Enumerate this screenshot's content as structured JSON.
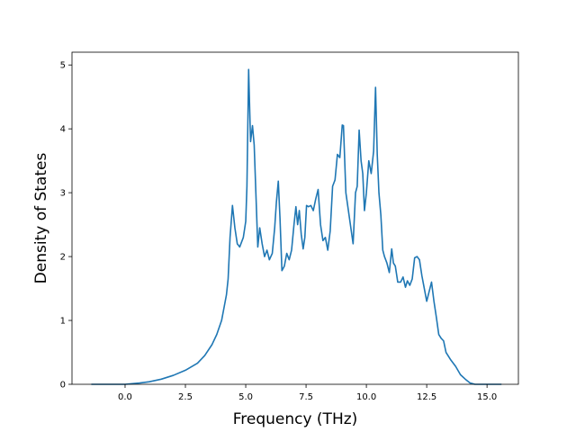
{
  "chart_data": {
    "type": "line",
    "title": "",
    "xlabel": "Frequency (THz)",
    "ylabel": "Density of States",
    "xlim": [
      -2.2,
      16.3
    ],
    "ylim": [
      0,
      5.2
    ],
    "x_ticks": [
      0.0,
      2.5,
      5.0,
      7.5,
      10.0,
      12.5,
      15.0
    ],
    "x_tick_labels": [
      "0.0",
      "2.5",
      "5.0",
      "7.5",
      "10.0",
      "12.5",
      "15.0"
    ],
    "y_ticks": [
      0,
      1,
      2,
      3,
      4,
      5
    ],
    "y_tick_labels": [
      "0",
      "1",
      "2",
      "3",
      "4",
      "5"
    ],
    "grid": false,
    "legend": "none",
    "series_color": "#1f77b4",
    "series": [
      {
        "x": [
          -1.4,
          -1.0,
          -0.5,
          0.0,
          0.3,
          0.6,
          1.0,
          1.5,
          2.0,
          2.5,
          3.0,
          3.3,
          3.6,
          3.8,
          4.0,
          4.1,
          4.2,
          4.27,
          4.35,
          4.45,
          4.55,
          4.65,
          4.75,
          4.9,
          5.0,
          5.05,
          5.12,
          5.2,
          5.28,
          5.35,
          5.42,
          5.5,
          5.58,
          5.68,
          5.78,
          5.88,
          5.98,
          6.1,
          6.2,
          6.27,
          6.35,
          6.42,
          6.5,
          6.6,
          6.7,
          6.8,
          6.9,
          7.0,
          7.08,
          7.15,
          7.22,
          7.3,
          7.38,
          7.45,
          7.52,
          7.6,
          7.7,
          7.8,
          7.9,
          8.0,
          8.1,
          8.2,
          8.3,
          8.4,
          8.5,
          8.6,
          8.7,
          8.8,
          8.9,
          9.0,
          9.05,
          9.15,
          9.3,
          9.45,
          9.55,
          9.62,
          9.7,
          9.78,
          9.85,
          9.92,
          10.0,
          10.1,
          10.2,
          10.3,
          10.38,
          10.45,
          10.52,
          10.6,
          10.68,
          10.75,
          10.85,
          10.95,
          11.05,
          11.12,
          11.2,
          11.3,
          11.42,
          11.52,
          11.62,
          11.7,
          11.8,
          11.9,
          12.0,
          12.1,
          12.2,
          12.3,
          12.4,
          12.5,
          12.6,
          12.7,
          12.8,
          12.9,
          13.0,
          13.1,
          13.2,
          13.3,
          13.5,
          13.7,
          13.9,
          14.1,
          14.3,
          14.5,
          14.8,
          15.2,
          15.6
        ],
        "y": [
          0.0,
          0.0,
          0.0,
          0.0,
          0.01,
          0.02,
          0.04,
          0.08,
          0.14,
          0.22,
          0.33,
          0.45,
          0.62,
          0.78,
          1.0,
          1.2,
          1.4,
          1.65,
          2.3,
          2.8,
          2.45,
          2.2,
          2.15,
          2.3,
          2.55,
          3.1,
          4.93,
          3.8,
          4.05,
          3.75,
          3.0,
          2.15,
          2.45,
          2.2,
          2.0,
          2.1,
          1.95,
          2.05,
          2.45,
          2.85,
          3.18,
          2.6,
          1.78,
          1.85,
          2.05,
          1.95,
          2.1,
          2.5,
          2.78,
          2.5,
          2.72,
          2.35,
          2.12,
          2.3,
          2.8,
          2.78,
          2.8,
          2.72,
          2.9,
          3.05,
          2.5,
          2.25,
          2.3,
          2.1,
          2.4,
          3.1,
          3.2,
          3.6,
          3.55,
          4.06,
          4.05,
          3.0,
          2.6,
          2.2,
          3.0,
          3.1,
          3.98,
          3.5,
          3.3,
          2.72,
          3.0,
          3.5,
          3.3,
          3.65,
          4.65,
          3.6,
          3.0,
          2.65,
          2.1,
          2.0,
          1.9,
          1.75,
          2.12,
          1.9,
          1.85,
          1.6,
          1.6,
          1.68,
          1.52,
          1.62,
          1.55,
          1.65,
          1.98,
          2.0,
          1.95,
          1.7,
          1.5,
          1.3,
          1.45,
          1.6,
          1.3,
          1.05,
          0.78,
          0.72,
          0.68,
          0.5,
          0.38,
          0.28,
          0.15,
          0.08,
          0.02,
          0.0,
          0.0,
          0.0,
          0.0
        ]
      }
    ]
  }
}
